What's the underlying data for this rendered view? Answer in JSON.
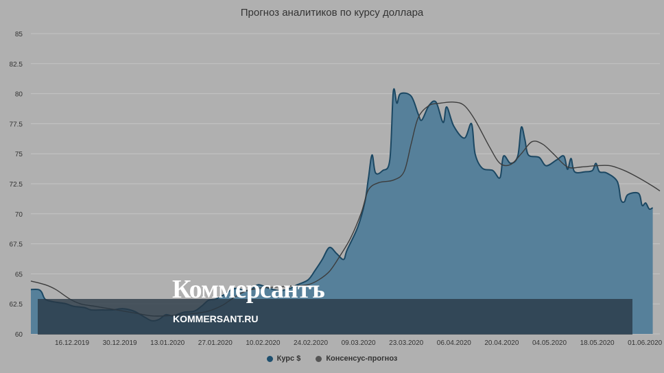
{
  "chart_data": {
    "type": "area",
    "title": "Прогноз аналитиков по курсу доллара",
    "ylim": [
      60,
      85
    ],
    "y_ticks": [
      60,
      62.5,
      65,
      67.5,
      70,
      72.5,
      75,
      77.5,
      80,
      82.5,
      85
    ],
    "y_tick_labels": [
      "60",
      "62.5",
      "65",
      "67.5",
      "70",
      "72.5",
      "75",
      "77.5",
      "80",
      "82.5",
      "85"
    ],
    "x_tick_labels": [
      "16.12.2019",
      "30.12.2019",
      "13.01.2020",
      "27.01.2020",
      "10.02.2020",
      "24.02.2020",
      "09.03.2020",
      "23.03.2020",
      "06.04.2020",
      "20.04.2020",
      "04.05.2020",
      "18.05.2020",
      "01.06.2020"
    ],
    "x_range": [
      "2019-12-08",
      "2020-06-02"
    ],
    "grid": true,
    "legend_position": "bottom",
    "series": [
      {
        "name": "Курс $",
        "kind": "area",
        "color": "#2c5f80",
        "points": [
          [
            "2019-12-08",
            63.7
          ],
          [
            "2019-12-10",
            63.7
          ],
          [
            "2019-12-11",
            63.5
          ],
          [
            "2019-12-12",
            62.9
          ],
          [
            "2019-12-14",
            62.7
          ],
          [
            "2019-12-16",
            62.6
          ],
          [
            "2019-12-18",
            62.5
          ],
          [
            "2019-12-20",
            62.3
          ],
          [
            "2019-12-23",
            62.2
          ],
          [
            "2019-12-25",
            62.0
          ],
          [
            "2019-12-28",
            62.0
          ],
          [
            "2019-12-31",
            62.0
          ],
          [
            "2020-01-03",
            62.1
          ],
          [
            "2020-01-06",
            61.9
          ],
          [
            "2020-01-09",
            61.4
          ],
          [
            "2020-01-11",
            61.1
          ],
          [
            "2020-01-13",
            61.2
          ],
          [
            "2020-01-15",
            61.6
          ],
          [
            "2020-01-17",
            61.5
          ],
          [
            "2020-01-20",
            61.8
          ],
          [
            "2020-01-23",
            61.9
          ],
          [
            "2020-01-25",
            62.3
          ],
          [
            "2020-01-27",
            62.8
          ],
          [
            "2020-01-29",
            62.9
          ],
          [
            "2020-01-31",
            63.2
          ],
          [
            "2020-02-02",
            63.6
          ],
          [
            "2020-02-04",
            63.8
          ],
          [
            "2020-02-06",
            63.6
          ],
          [
            "2020-02-08",
            63.7
          ],
          [
            "2020-02-10",
            64.1
          ],
          [
            "2020-02-13",
            63.8
          ],
          [
            "2020-02-16",
            63.6
          ],
          [
            "2020-02-19",
            63.8
          ],
          [
            "2020-02-21",
            64.1
          ],
          [
            "2020-02-24",
            64.5
          ],
          [
            "2020-02-26",
            65.3
          ],
          [
            "2020-02-28",
            66.2
          ],
          [
            "2020-03-01",
            67.2
          ],
          [
            "2020-03-03",
            66.7
          ],
          [
            "2020-03-05",
            66.2
          ],
          [
            "2020-03-06",
            67.0
          ],
          [
            "2020-03-09",
            68.9
          ],
          [
            "2020-03-11",
            71.0
          ],
          [
            "2020-03-12",
            73.0
          ],
          [
            "2020-03-13",
            74.9
          ],
          [
            "2020-03-14",
            73.4
          ],
          [
            "2020-03-16",
            73.6
          ],
          [
            "2020-03-18",
            74.5
          ],
          [
            "2020-03-19",
            80.2
          ],
          [
            "2020-03-20",
            79.2
          ],
          [
            "2020-03-21",
            80.0
          ],
          [
            "2020-03-24",
            79.8
          ],
          [
            "2020-03-26",
            78.3
          ],
          [
            "2020-03-27",
            77.8
          ],
          [
            "2020-03-29",
            79.0
          ],
          [
            "2020-03-31",
            79.3
          ],
          [
            "2020-04-02",
            77.6
          ],
          [
            "2020-04-03",
            78.9
          ],
          [
            "2020-04-05",
            77.3
          ],
          [
            "2020-04-08",
            76.3
          ],
          [
            "2020-04-10",
            77.5
          ],
          [
            "2020-04-11",
            75.0
          ],
          [
            "2020-04-13",
            73.8
          ],
          [
            "2020-04-16",
            73.6
          ],
          [
            "2020-04-18",
            73.0
          ],
          [
            "2020-04-19",
            74.8
          ],
          [
            "2020-04-21",
            74.2
          ],
          [
            "2020-04-23",
            74.8
          ],
          [
            "2020-04-24",
            77.2
          ],
          [
            "2020-04-25",
            76.2
          ],
          [
            "2020-04-26",
            74.9
          ],
          [
            "2020-04-29",
            74.7
          ],
          [
            "2020-05-01",
            74.0
          ],
          [
            "2020-05-04",
            74.5
          ],
          [
            "2020-05-06",
            74.8
          ],
          [
            "2020-05-07",
            73.7
          ],
          [
            "2020-05-08",
            74.6
          ],
          [
            "2020-05-09",
            73.5
          ],
          [
            "2020-05-12",
            73.5
          ],
          [
            "2020-05-14",
            73.6
          ],
          [
            "2020-05-15",
            74.2
          ],
          [
            "2020-05-16",
            73.5
          ],
          [
            "2020-05-18",
            73.4
          ],
          [
            "2020-05-21",
            72.7
          ],
          [
            "2020-05-22",
            71.2
          ],
          [
            "2020-05-23",
            71.0
          ],
          [
            "2020-05-24",
            71.6
          ],
          [
            "2020-05-27",
            71.7
          ],
          [
            "2020-05-28",
            70.7
          ],
          [
            "2020-05-29",
            70.9
          ],
          [
            "2020-05-30",
            70.4
          ],
          [
            "2020-05-31",
            70.5
          ]
        ]
      },
      {
        "name": "Консенсус-прогноз",
        "kind": "line",
        "color": "#444444",
        "points": [
          [
            "2019-12-08",
            64.4
          ],
          [
            "2019-12-12",
            64.1
          ],
          [
            "2019-12-15",
            63.7
          ],
          [
            "2019-12-19",
            62.9
          ],
          [
            "2019-12-22",
            62.5
          ],
          [
            "2019-12-26",
            62.3
          ],
          [
            "2019-12-30",
            62.1
          ],
          [
            "2020-01-03",
            61.9
          ],
          [
            "2020-01-07",
            61.7
          ],
          [
            "2020-01-11",
            61.5
          ],
          [
            "2020-01-15",
            61.5
          ],
          [
            "2020-01-19",
            61.6
          ],
          [
            "2020-01-23",
            61.7
          ],
          [
            "2020-01-27",
            61.9
          ],
          [
            "2020-01-31",
            62.4
          ],
          [
            "2020-02-03",
            63.0
          ],
          [
            "2020-02-06",
            63.5
          ],
          [
            "2020-02-10",
            63.8
          ],
          [
            "2020-02-15",
            63.9
          ],
          [
            "2020-02-20",
            64.0
          ],
          [
            "2020-02-24",
            64.1
          ],
          [
            "2020-02-27",
            64.5
          ],
          [
            "2020-03-01",
            65.2
          ],
          [
            "2020-03-04",
            66.5
          ],
          [
            "2020-03-07",
            68.0
          ],
          [
            "2020-03-10",
            70.1
          ],
          [
            "2020-03-12",
            72.0
          ],
          [
            "2020-03-15",
            72.6
          ],
          [
            "2020-03-19",
            72.8
          ],
          [
            "2020-03-22",
            73.5
          ],
          [
            "2020-03-24",
            75.8
          ],
          [
            "2020-03-26",
            78.0
          ],
          [
            "2020-03-29",
            79.0
          ],
          [
            "2020-04-01",
            79.2
          ],
          [
            "2020-04-05",
            79.3
          ],
          [
            "2020-04-08",
            79.0
          ],
          [
            "2020-04-11",
            77.8
          ],
          [
            "2020-04-15",
            75.6
          ],
          [
            "2020-04-18",
            74.2
          ],
          [
            "2020-04-21",
            74.1
          ],
          [
            "2020-04-24",
            75.0
          ],
          [
            "2020-04-27",
            76.0
          ],
          [
            "2020-04-30",
            75.8
          ],
          [
            "2020-05-03",
            75.0
          ],
          [
            "2020-05-07",
            73.9
          ],
          [
            "2020-05-11",
            73.9
          ],
          [
            "2020-05-15",
            74.0
          ],
          [
            "2020-05-19",
            74.0
          ],
          [
            "2020-05-23",
            73.6
          ],
          [
            "2020-05-27",
            73.0
          ],
          [
            "2020-05-31",
            72.3
          ],
          [
            "2020-06-02",
            71.9
          ]
        ]
      }
    ]
  },
  "legend": {
    "items": [
      {
        "label": "Курс $",
        "color": "#1e4f6e"
      },
      {
        "label": "Консенсус-прогноз",
        "color": "#555555"
      }
    ]
  },
  "watermark": {
    "logo": "Коммерсантъ",
    "url": "KOMMERSANT.RU"
  }
}
